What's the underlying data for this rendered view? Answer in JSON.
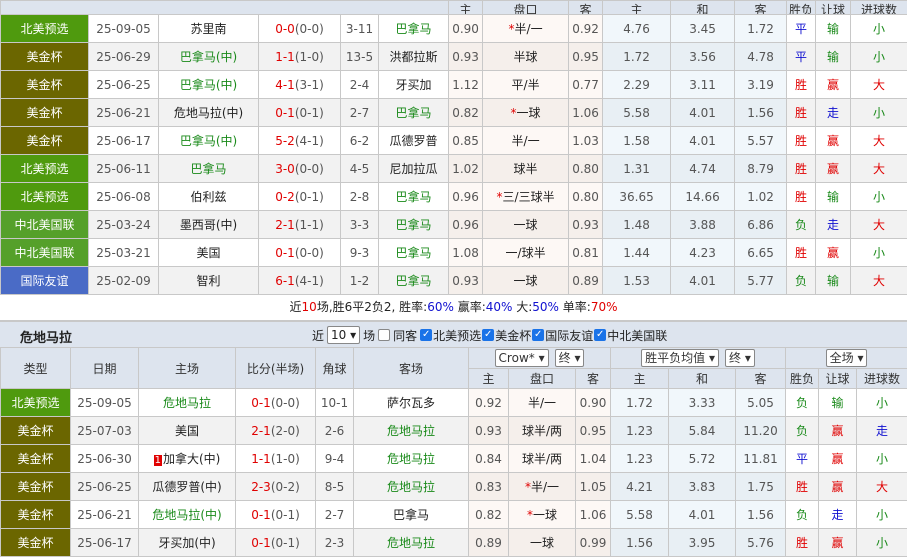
{
  "colors": {
    "北美预选": "#4f9a0e",
    "美金杯": "#6b6600",
    "中北美国联": "#55a02a",
    "国际友谊": "#4a6bc6"
  },
  "top": {
    "headers": [
      "主",
      "盘口",
      "客",
      "主",
      "和",
      "客",
      "胜负",
      "让球",
      "进球数"
    ],
    "rows": [
      [
        "北美预选",
        "25-09-05",
        "苏里南",
        0,
        "0-0",
        "(0-0)",
        "3-11",
        "巴拿马",
        1,
        "0.90",
        "*",
        "半/一",
        "0.92",
        "4.76",
        "3.45",
        "1.72",
        "平",
        "输",
        "小"
      ],
      [
        "美金杯",
        "25-06-29",
        "巴拿马(中)",
        1,
        "1-1",
        "(1-0)",
        "13-5",
        "洪都拉斯",
        0,
        "0.93",
        "",
        "半球",
        "0.95",
        "1.72",
        "3.56",
        "4.78",
        "平",
        "输",
        "小"
      ],
      [
        "美金杯",
        "25-06-25",
        "巴拿马(中)",
        1,
        "4-1",
        "(3-1)",
        "2-4",
        "牙买加",
        0,
        "1.12",
        "",
        "平/半",
        "0.77",
        "2.29",
        "3.11",
        "3.19",
        "胜",
        "赢",
        "大"
      ],
      [
        "美金杯",
        "25-06-21",
        "危地马拉(中)",
        0,
        "0-1",
        "(0-1)",
        "2-7",
        "巴拿马",
        1,
        "0.82",
        "*",
        "一球",
        "1.06",
        "5.58",
        "4.01",
        "1.56",
        "胜",
        "走",
        "小"
      ],
      [
        "美金杯",
        "25-06-17",
        "巴拿马(中)",
        1,
        "5-2",
        "(4-1)",
        "6-2",
        "瓜德罗普",
        0,
        "0.85",
        "",
        "半/一",
        "1.03",
        "1.58",
        "4.01",
        "5.57",
        "胜",
        "赢",
        "大"
      ],
      [
        "北美预选",
        "25-06-11",
        "巴拿马",
        1,
        "3-0",
        "(0-0)",
        "4-5",
        "尼加拉瓜",
        0,
        "1.02",
        "",
        "球半",
        "0.80",
        "1.31",
        "4.74",
        "8.79",
        "胜",
        "赢",
        "大"
      ],
      [
        "北美预选",
        "25-06-08",
        "伯利兹",
        0,
        "0-2",
        "(0-1)",
        "2-8",
        "巴拿马",
        1,
        "0.96",
        "*",
        "三/三球半",
        "0.80",
        "36.65",
        "14.66",
        "1.02",
        "胜",
        "输",
        "小"
      ],
      [
        "中北美国联",
        "25-03-24",
        "墨西哥(中)",
        0,
        "2-1",
        "(1-1)",
        "3-3",
        "巴拿马",
        1,
        "0.96",
        "",
        "一球",
        "0.93",
        "1.48",
        "3.88",
        "6.86",
        "负",
        "走",
        "大"
      ],
      [
        "中北美国联",
        "25-03-21",
        "美国",
        0,
        "0-1",
        "(0-0)",
        "9-3",
        "巴拿马",
        1,
        "1.08",
        "",
        "一/球半",
        "0.81",
        "1.44",
        "4.23",
        "6.65",
        "胜",
        "赢",
        "小"
      ],
      [
        "国际友谊",
        "25-02-09",
        "智利",
        0,
        "6-1",
        "(4-1)",
        "1-2",
        "巴拿马",
        1,
        "0.93",
        "",
        "一球",
        "0.89",
        "1.53",
        "4.01",
        "5.77",
        "负",
        "输",
        "大"
      ]
    ]
  },
  "stats": {
    "p1": "近",
    "n": "10",
    "p2": "场,胜6平2负2, 胜率:",
    "win": "60%",
    "p3": " 赢率:",
    "cover": "40%",
    "p4": " 大:",
    "over": "50%",
    "p5": " 单率:",
    "odd": "70%"
  },
  "section": {
    "title": "危地马拉",
    "near": "近",
    "count": "10",
    "unit": "场",
    "same": "同客",
    "filters": [
      "北美预选",
      "美金杯",
      "国际友谊",
      "中北美国联"
    ]
  },
  "bottom": {
    "headers1": [
      "类型",
      "日期",
      "主场",
      "比分(半场)",
      "角球",
      "客场"
    ],
    "selects": [
      "Crow*",
      "终",
      "胜平负均值",
      "终",
      "全场"
    ],
    "headers2": [
      "主",
      "盘口",
      "客",
      "主",
      "和",
      "客",
      "胜负",
      "让球",
      "进球数"
    ],
    "rows": [
      [
        "北美预选",
        "25-09-05",
        "危地马拉",
        1,
        "0-1",
        "(0-0)",
        "10-1",
        "萨尔瓦多",
        0,
        "0.92",
        "",
        "半/一",
        "0.90",
        "1.72",
        "3.33",
        "5.05",
        "负",
        "输",
        "小"
      ],
      [
        "美金杯",
        "25-07-03",
        "美国",
        0,
        "2-1",
        "(2-0)",
        "2-6",
        "危地马拉",
        1,
        "0.93",
        "",
        "球半/两",
        "0.95",
        "1.23",
        "5.84",
        "11.20",
        "负",
        "赢",
        "走"
      ],
      [
        "美金杯",
        "25-06-30",
        "加拿大(中)",
        0,
        "1-1",
        "(1-0)",
        "9-4",
        "危地马拉",
        1,
        "0.84",
        "",
        "球半/两",
        "1.04",
        "1.23",
        "5.72",
        "11.81",
        "平",
        "赢",
        "小",
        "1"
      ],
      [
        "美金杯",
        "25-06-25",
        "瓜德罗普(中)",
        0,
        "2-3",
        "(0-2)",
        "8-5",
        "危地马拉",
        1,
        "0.83",
        "*",
        "半/一",
        "1.05",
        "4.21",
        "3.83",
        "1.75",
        "胜",
        "赢",
        "大"
      ],
      [
        "美金杯",
        "25-06-21",
        "危地马拉(中)",
        1,
        "0-1",
        "(0-1)",
        "2-7",
        "巴拿马",
        0,
        "0.82",
        "*",
        "一球",
        "1.06",
        "5.58",
        "4.01",
        "1.56",
        "负",
        "走",
        "小"
      ],
      [
        "美金杯",
        "25-06-17",
        "牙买加(中)",
        0,
        "0-1",
        "(0-1)",
        "2-3",
        "危地马拉",
        1,
        "0.89",
        "",
        "一球",
        "0.99",
        "1.56",
        "3.95",
        "5.76",
        "胜",
        "赢",
        "小"
      ]
    ]
  }
}
